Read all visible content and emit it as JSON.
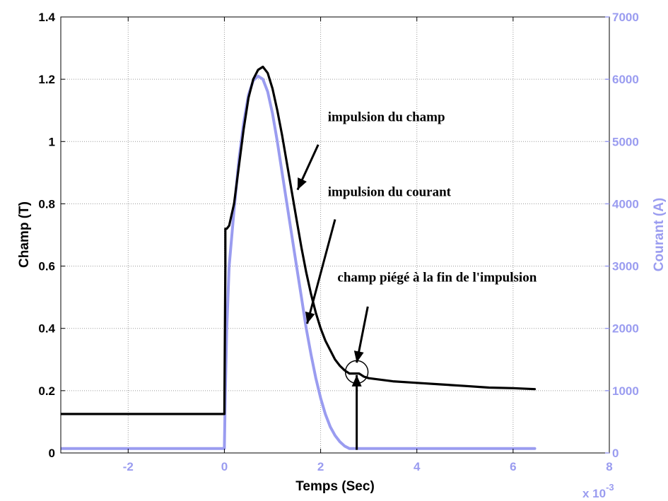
{
  "chart_data": {
    "type": "line",
    "xlabel": "Temps (Sec)",
    "ylabel_left": "Champ (T)",
    "ylabel_right": "Courant (A)",
    "x_multiplier_label": "x 10",
    "x_multiplier_exponent": "-3",
    "xlim": [
      -3.4,
      8
    ],
    "ylim_left": [
      0,
      1.4
    ],
    "ylim_right": [
      0,
      7000
    ],
    "grid": true,
    "x_ticks": [
      -2,
      0,
      2,
      4,
      6,
      8
    ],
    "x_tick_labels": [
      "-2",
      "0",
      "2",
      "4",
      "6",
      "8"
    ],
    "y_left_ticks": [
      0,
      0.2,
      0.4,
      0.6,
      0.8,
      1.0,
      1.2,
      1.4
    ],
    "y_left_tick_labels": [
      "0",
      "0.2",
      "0.4",
      "0.6",
      "0.8",
      "1",
      "1.2",
      "1.4"
    ],
    "y_right_ticks": [
      0,
      1000,
      2000,
      3000,
      4000,
      5000,
      6000,
      7000
    ],
    "y_right_tick_labels": [
      "0",
      "1000",
      "2000",
      "3000",
      "4000",
      "5000",
      "6000",
      "7000"
    ],
    "colors": {
      "champ": "#000000",
      "courant": "#9a9cf0",
      "grid": "#9a9a9a"
    },
    "series": [
      {
        "axis": "left",
        "color": "#000000",
        "x": [
          -3.4,
          -0.01,
          0.0,
          0.02,
          0.02,
          0.05,
          0.1,
          0.2,
          0.3,
          0.4,
          0.5,
          0.6,
          0.7,
          0.8,
          0.9,
          1.0,
          1.1,
          1.2,
          1.3,
          1.4,
          1.5,
          1.6,
          1.7,
          1.8,
          1.9,
          2.0,
          2.1,
          2.2,
          2.3,
          2.4,
          2.5,
          2.6,
          2.7,
          2.8,
          2.9,
          3.0,
          3.5,
          4.0,
          4.5,
          5.0,
          5.5,
          6.0,
          6.45
        ],
        "y": [
          0.125,
          0.125,
          0.125,
          0.6,
          0.72,
          0.72,
          0.73,
          0.8,
          0.92,
          1.04,
          1.14,
          1.2,
          1.23,
          1.24,
          1.22,
          1.17,
          1.1,
          1.02,
          0.93,
          0.84,
          0.75,
          0.66,
          0.58,
          0.51,
          0.45,
          0.4,
          0.36,
          0.33,
          0.3,
          0.28,
          0.265,
          0.255,
          0.255,
          0.255,
          0.245,
          0.24,
          0.23,
          0.225,
          0.22,
          0.215,
          0.21,
          0.208,
          0.205
        ]
      },
      {
        "axis": "right",
        "color": "#9a9cf0",
        "x": [
          -3.4,
          -0.01,
          0.0,
          0.02,
          0.05,
          0.1,
          0.2,
          0.3,
          0.4,
          0.5,
          0.6,
          0.7,
          0.8,
          0.9,
          1.0,
          1.1,
          1.2,
          1.3,
          1.4,
          1.5,
          1.6,
          1.7,
          1.8,
          1.9,
          2.0,
          2.1,
          2.2,
          2.3,
          2.4,
          2.5,
          2.6,
          2.7,
          2.8,
          3.0,
          4.0,
          5.0,
          6.0,
          6.45
        ],
        "y": [
          70,
          70,
          70,
          1000,
          2000,
          3000,
          3900,
          4700,
          5300,
          5750,
          5980,
          6050,
          6000,
          5800,
          5450,
          5000,
          4500,
          4000,
          3500,
          3000,
          2500,
          2000,
          1580,
          1200,
          880,
          620,
          420,
          280,
          180,
          110,
          70,
          70,
          70,
          70,
          70,
          70,
          70,
          70
        ]
      }
    ],
    "annotations": [
      {
        "text": "impulsion du champ",
        "text_x": 2.15,
        "text_y": 1.065,
        "arrow_from": [
          1.95,
          0.99
        ],
        "arrow_to": [
          1.52,
          0.845
        ]
      },
      {
        "text": "impulsion du courant",
        "text_x": 2.15,
        "text_y": 0.825,
        "arrow_from": [
          2.3,
          0.75
        ],
        "arrow_to": [
          1.72,
          0.415
        ]
      },
      {
        "text": "champ piégé à la fin de l'impulsion",
        "text_x": 2.35,
        "text_y": 0.55,
        "arrow_from": [
          2.98,
          0.47
        ],
        "arrow_to": [
          2.75,
          0.29
        ]
      }
    ],
    "marker_circle": {
      "x": 2.75,
      "y": 0.26
    },
    "vertical_arrow": {
      "x": 2.75,
      "y_from": 0.01,
      "y_to": 0.25
    }
  }
}
